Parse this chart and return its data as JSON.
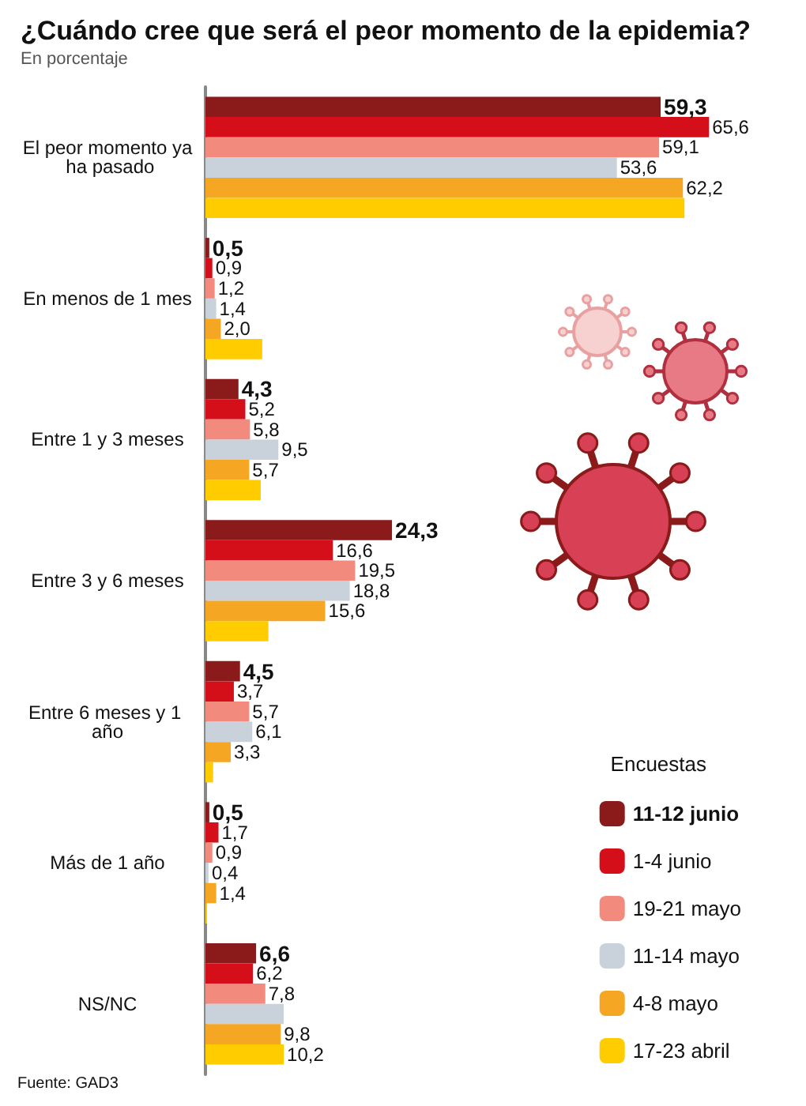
{
  "chart_data": {
    "type": "bar",
    "orientation": "horizontal",
    "title": "¿Cuándo cree que será el peor momento de la epidemia?",
    "subtitle": "En porcentaje",
    "legend_title": "Encuestas",
    "legend": "bottom right",
    "annotations": [
      "Fuente: GAD3"
    ],
    "categories": [
      "El peor momento ya ha pasado",
      "En menos de 1 mes",
      "Entre 1 y 3 meses",
      "Entre 3 y 6 meses",
      "Entre 6 meses y 1 año",
      "Más de 1 año",
      "NS/NC"
    ],
    "series": [
      {
        "name": "11-12 junio",
        "color": "#8b1a1a",
        "values": [
          59.3,
          0.5,
          4.3,
          24.3,
          4.5,
          0.5,
          6.6
        ],
        "value_labels": [
          "59,3",
          "0,5",
          "4,3",
          "24,3",
          "4,5",
          "0,5",
          "6,6"
        ]
      },
      {
        "name": "1-4 junio",
        "color": "#d40f1a",
        "values": [
          65.6,
          0.9,
          5.2,
          16.6,
          3.7,
          1.7,
          6.2
        ],
        "value_labels": [
          "65,6",
          "0,9",
          "5,2",
          "16,6",
          "3,7",
          "1,7",
          "6,2"
        ]
      },
      {
        "name": "19-21 mayo",
        "color": "#f28a7e",
        "values": [
          59.1,
          1.2,
          5.8,
          19.5,
          5.7,
          0.9,
          7.8
        ],
        "value_labels": [
          "59,1",
          "1,2",
          "5,8",
          "19,5",
          "5,7",
          "0,9",
          "7,8"
        ]
      },
      {
        "name": "11-14 mayo",
        "color": "#c9d2db",
        "values": [
          53.6,
          1.4,
          9.5,
          18.8,
          6.1,
          0.4,
          10.2
        ],
        "value_labels": [
          "53,6",
          "1,4",
          "9,5",
          "18,8",
          "6,1",
          "0,4",
          null
        ]
      },
      {
        "name": "4-8 mayo",
        "color": "#f5a623",
        "values": [
          62.2,
          2.0,
          5.7,
          15.6,
          3.3,
          1.4,
          9.8
        ],
        "value_labels": [
          "62,2",
          "2,0",
          "5,7",
          "15,6",
          "3,3",
          "1,4",
          "9,8"
        ]
      },
      {
        "name": "17-23 abril",
        "color": "#ffcc00",
        "values": [
          62.4,
          7.4,
          7.2,
          8.2,
          1.0,
          0.2,
          10.2
        ],
        "value_labels": [
          null,
          null,
          null,
          null,
          null,
          null,
          "10,2"
        ]
      }
    ]
  }
}
